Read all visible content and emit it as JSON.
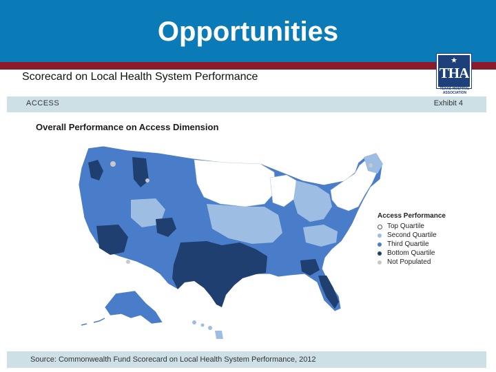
{
  "slide": {
    "title": "Opportunities",
    "subtitle": "Scorecard on Local Health System Performance"
  },
  "logo": {
    "letters": "THA",
    "caption": "TEXAS HOSPITAL ASSOCIATION"
  },
  "exhibit": {
    "section": "ACCESS",
    "number": "Exhibit 4",
    "heading": "Overall Performance on Access Dimension",
    "source": "Source: Commonwealth Fund Scorecard on Local Health System Performance, 2012"
  },
  "legend": {
    "title": "Access Performance",
    "items": [
      {
        "label": "Top Quartile",
        "color": "#ffffff"
      },
      {
        "label": "Second Quartile",
        "color": "#9dbde2"
      },
      {
        "label": "Third Quartile",
        "color": "#4a7dc9"
      },
      {
        "label": "Bottom Quartile",
        "color": "#1f3f70"
      },
      {
        "label": "Not Populated",
        "color": "#c8c8c8"
      }
    ]
  },
  "colors": {
    "title_bar": "#0b7bb8",
    "accent_rule": "#8b1a2a",
    "strip": "#cde0e6"
  }
}
